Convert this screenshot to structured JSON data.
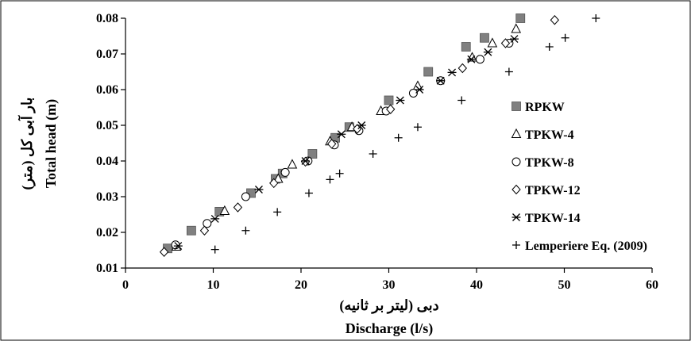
{
  "chart_data": {
    "type": "scatter",
    "xlabel_fa": "دبی (لیتر بر ثانیه)",
    "xlabel_en": "Discharge (l/s)",
    "ylabel_fa": "بار آبی کل (متر)",
    "ylabel_en": "Total head (m)",
    "xlim": [
      0,
      60
    ],
    "ylim": [
      0.01,
      0.08
    ],
    "x_ticks": [
      "0",
      "10",
      "20",
      "30",
      "40",
      "50",
      "60"
    ],
    "y_ticks": [
      "0.01",
      "0.02",
      "0.03",
      "0.04",
      "0.05",
      "0.06",
      "0.07",
      "0.08"
    ],
    "grid": false,
    "legend_position": "right",
    "series": [
      {
        "name": "RPKW",
        "marker": "square",
        "color": "#808080",
        "points": [
          [
            4.8,
            0.0155
          ],
          [
            7.5,
            0.0205
          ],
          [
            10.7,
            0.0258
          ],
          [
            14.3,
            0.031
          ],
          [
            17.1,
            0.035
          ],
          [
            17.9,
            0.0365
          ],
          [
            21.3,
            0.042
          ],
          [
            23.9,
            0.0465
          ],
          [
            25.5,
            0.0495
          ],
          [
            30.0,
            0.057
          ],
          [
            34.5,
            0.065
          ],
          [
            38.8,
            0.072
          ],
          [
            40.9,
            0.0745
          ],
          [
            45.0,
            0.08
          ]
        ]
      },
      {
        "name": "TPKW-4",
        "marker": "triangle",
        "color": "#000000",
        "points": [
          [
            5.8,
            0.016
          ],
          [
            11.3,
            0.026
          ],
          [
            17.4,
            0.035
          ],
          [
            19.0,
            0.039
          ],
          [
            23.3,
            0.0455
          ],
          [
            25.8,
            0.0495
          ],
          [
            29.1,
            0.054
          ],
          [
            33.3,
            0.061
          ],
          [
            39.5,
            0.069
          ],
          [
            41.8,
            0.073
          ],
          [
            44.5,
            0.077
          ]
        ]
      },
      {
        "name": "TPKW-8",
        "marker": "circle",
        "color": "#000000",
        "points": [
          [
            5.7,
            0.0165
          ],
          [
            9.3,
            0.0225
          ],
          [
            13.7,
            0.03
          ],
          [
            18.2,
            0.0368
          ],
          [
            20.8,
            0.04
          ],
          [
            23.8,
            0.0445
          ],
          [
            26.6,
            0.0485
          ],
          [
            29.7,
            0.054
          ],
          [
            32.8,
            0.059
          ],
          [
            35.9,
            0.0625
          ],
          [
            40.4,
            0.0685
          ],
          [
            43.7,
            0.073
          ]
        ]
      },
      {
        "name": "TPKW-12",
        "marker": "diamond",
        "color": "#000000",
        "points": [
          [
            4.4,
            0.0145
          ],
          [
            9.0,
            0.0205
          ],
          [
            12.8,
            0.027
          ],
          [
            16.9,
            0.0338
          ],
          [
            20.5,
            0.0398
          ],
          [
            23.5,
            0.0448
          ],
          [
            26.4,
            0.049
          ],
          [
            30.2,
            0.0545
          ],
          [
            38.4,
            0.066
          ],
          [
            43.3,
            0.073
          ],
          [
            48.9,
            0.0795
          ]
        ]
      },
      {
        "name": "TPKW-14",
        "marker": "xstar",
        "color": "#000000",
        "points": [
          [
            6.0,
            0.0162
          ],
          [
            10.2,
            0.0238
          ],
          [
            15.2,
            0.032
          ],
          [
            20.5,
            0.04
          ],
          [
            24.6,
            0.0475
          ],
          [
            26.9,
            0.05
          ],
          [
            31.3,
            0.057
          ],
          [
            33.5,
            0.06
          ],
          [
            35.9,
            0.0625
          ],
          [
            37.2,
            0.0648
          ],
          [
            39.4,
            0.0685
          ],
          [
            41.3,
            0.0705
          ],
          [
            44.3,
            0.0742
          ]
        ]
      },
      {
        "name": "Lemperiere Eq. (2009)",
        "marker": "plus",
        "color": "#000000",
        "points": [
          [
            10.2,
            0.0152
          ],
          [
            13.7,
            0.0205
          ],
          [
            17.3,
            0.0257
          ],
          [
            20.9,
            0.031
          ],
          [
            23.3,
            0.0348
          ],
          [
            24.4,
            0.0365
          ],
          [
            28.2,
            0.042
          ],
          [
            31.1,
            0.0465
          ],
          [
            33.3,
            0.0495
          ],
          [
            38.3,
            0.057
          ],
          [
            43.7,
            0.065
          ],
          [
            48.3,
            0.072
          ],
          [
            50.1,
            0.0745
          ],
          [
            53.6,
            0.08
          ]
        ]
      }
    ]
  }
}
